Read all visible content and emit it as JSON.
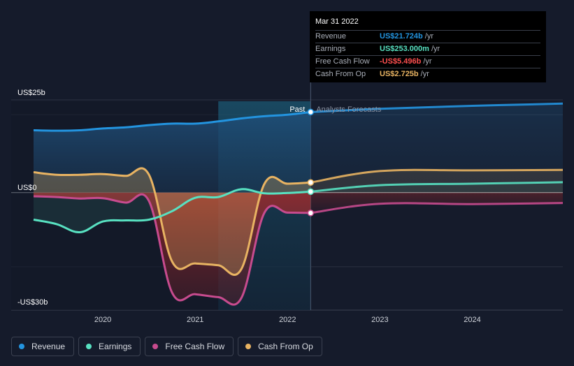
{
  "chart_data": {
    "type": "line",
    "y_axis": {
      "max_label": "US$25b",
      "zero_label": "US$0",
      "min_label": "-US$30b",
      "ylim": [
        -30,
        25
      ]
    },
    "x_ticks": [
      "2020",
      "2021",
      "2022",
      "2023",
      "2024"
    ],
    "x_range": [
      2019.25,
      2024.98
    ],
    "past_label": "Past",
    "forecast_label": "Analysts Forecasts",
    "past_divider_x": 2022.25,
    "highlight_start_x": 2021.25,
    "series": [
      {
        "name": "Revenue",
        "color": "#2394df",
        "x": [
          2019.25,
          2019.5,
          2019.75,
          2020.0,
          2020.25,
          2020.5,
          2020.75,
          2021.0,
          2021.25,
          2021.5,
          2021.75,
          2022.0,
          2022.25,
          2023.0,
          2024.0,
          2024.98
        ],
        "y": [
          16.8,
          16.7,
          16.8,
          17.3,
          17.6,
          18.2,
          18.6,
          18.6,
          19.2,
          20.0,
          20.6,
          21.0,
          21.724,
          22.6,
          23.4,
          24.0
        ],
        "forecast_from": 2022.25
      },
      {
        "name": "Earnings",
        "color": "#58e1c1",
        "x": [
          2019.25,
          2019.5,
          2019.75,
          2020.0,
          2020.25,
          2020.5,
          2020.75,
          2021.0,
          2021.25,
          2021.5,
          2021.75,
          2022.0,
          2022.25,
          2023.0,
          2024.0,
          2024.98
        ],
        "y": [
          -7.3,
          -8.5,
          -10.7,
          -7.8,
          -7.5,
          -7.3,
          -5.0,
          -1.4,
          -1.2,
          0.9,
          -0.2,
          -0.1,
          0.253,
          2.0,
          2.4,
          2.8
        ],
        "forecast_from": 2022.25
      },
      {
        "name": "Free Cash Flow",
        "color": "#c74b8e",
        "x": [
          2019.25,
          2019.5,
          2019.75,
          2020.0,
          2020.25,
          2020.5,
          2020.75,
          2021.0,
          2021.25,
          2021.5,
          2021.75,
          2022.0,
          2022.25,
          2023.0,
          2024.0,
          2024.98
        ],
        "y": [
          -1.0,
          -1.2,
          -1.6,
          -1.5,
          -2.7,
          -2.3,
          -27.0,
          -27.4,
          -28.2,
          -28.4,
          -5.4,
          -5.4,
          -5.496,
          -3.0,
          -3.1,
          -2.8
        ],
        "forecast_from": 2022.25
      },
      {
        "name": "Cash From Op",
        "color": "#e8b362",
        "x": [
          2019.25,
          2019.5,
          2019.75,
          2020.0,
          2020.25,
          2020.5,
          2020.75,
          2021.0,
          2021.25,
          2021.5,
          2021.75,
          2022.0,
          2022.25,
          2023.0,
          2024.0,
          2024.98
        ],
        "y": [
          5.5,
          4.8,
          4.8,
          5.0,
          4.5,
          4.8,
          -18.6,
          -19.1,
          -19.6,
          -20.6,
          2.4,
          2.4,
          2.725,
          5.8,
          6.0,
          6.1
        ],
        "forecast_from": 2022.25
      }
    ]
  },
  "tooltip": {
    "date": "Mar 31 2022",
    "rows": [
      {
        "name": "Revenue",
        "value": "US$21.724b",
        "unit": "/yr",
        "color": "#2394df"
      },
      {
        "name": "Earnings",
        "value": "US$253.000m",
        "unit": "/yr",
        "color": "#58e1c1"
      },
      {
        "name": "Free Cash Flow",
        "value": "-US$5.496b",
        "unit": "/yr",
        "color": "#ff4f4f"
      },
      {
        "name": "Cash From Op",
        "value": "US$2.725b",
        "unit": "/yr",
        "color": "#e8b362"
      }
    ]
  },
  "legend": [
    {
      "label": "Revenue",
      "color": "#2394df"
    },
    {
      "label": "Earnings",
      "color": "#58e1c1"
    },
    {
      "label": "Free Cash Flow",
      "color": "#c74b8e"
    },
    {
      "label": "Cash From Op",
      "color": "#e8b362"
    }
  ]
}
